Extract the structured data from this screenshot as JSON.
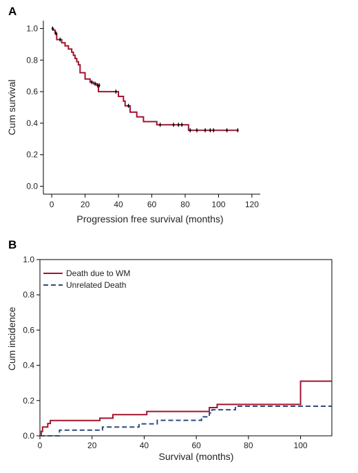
{
  "chart_data": [
    {
      "panel": "A",
      "type": "line",
      "subtype": "kaplan-meier",
      "xlabel": "Progression free survival (months)",
      "ylabel": "Cum survival",
      "xlim": [
        -5,
        125
      ],
      "ylim": [
        -0.05,
        1.05
      ],
      "xticks": [
        0,
        20,
        40,
        60,
        80,
        100,
        120
      ],
      "yticks": [
        0.0,
        0.2,
        0.4,
        0.6,
        0.8,
        1.0
      ],
      "ytick_labels": [
        "0.0",
        "0.2",
        "0.4",
        "0.6",
        "0.8",
        "1.0"
      ],
      "grid": false,
      "series": [
        {
          "color": "#a3132f",
          "steps": [
            [
              0,
              1.0
            ],
            [
              1,
              0.99
            ],
            [
              2,
              0.97
            ],
            [
              3,
              0.93
            ],
            [
              6,
              0.91
            ],
            [
              8,
              0.89
            ],
            [
              10,
              0.87
            ],
            [
              12,
              0.85
            ],
            [
              13,
              0.83
            ],
            [
              14,
              0.81
            ],
            [
              15,
              0.79
            ],
            [
              16,
              0.77
            ],
            [
              17,
              0.72
            ],
            [
              20,
              0.68
            ],
            [
              23,
              0.66
            ],
            [
              25,
              0.65
            ],
            [
              27,
              0.64
            ],
            [
              28,
              0.6
            ],
            [
              38,
              0.6
            ],
            [
              40,
              0.57
            ],
            [
              43,
              0.54
            ],
            [
              44,
              0.51
            ],
            [
              47,
              0.47
            ],
            [
              51,
              0.44
            ],
            [
              55,
              0.41
            ],
            [
              63,
              0.39
            ],
            [
              82,
              0.355
            ],
            [
              112,
              0.355
            ]
          ],
          "censored": [
            [
              0.5,
              1.0
            ],
            [
              2.5,
              0.97
            ],
            [
              5,
              0.93
            ],
            [
              24,
              0.66
            ],
            [
              26,
              0.65
            ],
            [
              27.5,
              0.64
            ],
            [
              28.5,
              0.64
            ],
            [
              38.5,
              0.6
            ],
            [
              46,
              0.51
            ],
            [
              65,
              0.39
            ],
            [
              73,
              0.39
            ],
            [
              76,
              0.39
            ],
            [
              78,
              0.39
            ],
            [
              83,
              0.355
            ],
            [
              87,
              0.355
            ],
            [
              92,
              0.355
            ],
            [
              95,
              0.355
            ],
            [
              97,
              0.355
            ],
            [
              105,
              0.355
            ],
            [
              111.5,
              0.355
            ]
          ]
        }
      ]
    },
    {
      "panel": "B",
      "type": "line",
      "subtype": "cumulative-incidence",
      "xlabel": "Survival (months)",
      "ylabel": "Cum incidence",
      "xlim": [
        0,
        112
      ],
      "ylim": [
        0,
        1.0
      ],
      "xticks": [
        0,
        20,
        40,
        60,
        80,
        100
      ],
      "yticks": [
        0.0,
        0.2,
        0.4,
        0.6,
        0.8,
        1.0
      ],
      "ytick_labels": [
        "0.0",
        "0.2",
        "0.4",
        "0.6",
        "0.8",
        "1.0"
      ],
      "legend_position": "top-left",
      "grid": false,
      "series": [
        {
          "name": "Death due to WM",
          "color": "#a3132f",
          "dash": "solid",
          "steps": [
            [
              0,
              0.0
            ],
            [
              0.5,
              0.025
            ],
            [
              1,
              0.05
            ],
            [
              3,
              0.07
            ],
            [
              4,
              0.087
            ],
            [
              23,
              0.1
            ],
            [
              28,
              0.12
            ],
            [
              41,
              0.138
            ],
            [
              65,
              0.16
            ],
            [
              68,
              0.178
            ],
            [
              100,
              0.31
            ],
            [
              112,
              0.31
            ]
          ]
        },
        {
          "name": "Unrelated Death",
          "color": "#2b4a7a",
          "dash": "dashed",
          "steps": [
            [
              0,
              0.0
            ],
            [
              7.5,
              0.032
            ],
            [
              24,
              0.05
            ],
            [
              38,
              0.068
            ],
            [
              45,
              0.088
            ],
            [
              62,
              0.108
            ],
            [
              65,
              0.13
            ],
            [
              66,
              0.148
            ],
            [
              75,
              0.168
            ],
            [
              112,
              0.168
            ]
          ]
        }
      ]
    }
  ]
}
